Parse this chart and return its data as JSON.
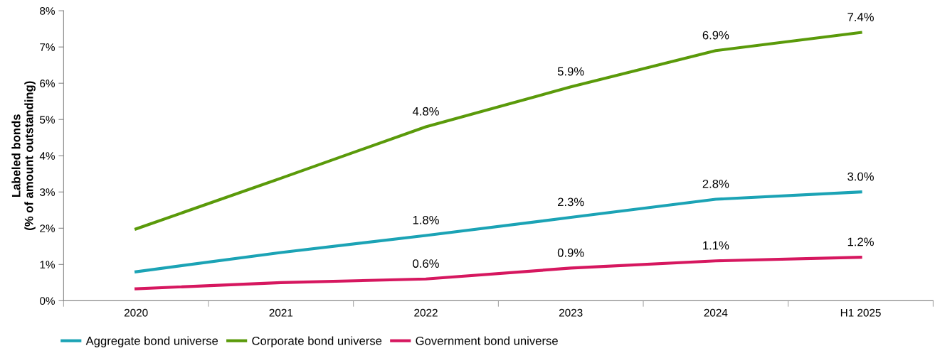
{
  "chart_data": {
    "type": "line",
    "ylabel": "Labeled bonds\n(% of amount outstanding)",
    "categories": [
      "2020",
      "2021",
      "2022",
      "2023",
      "2024",
      "H1 2025"
    ],
    "series": [
      {
        "name": "Aggregate bond universe",
        "color": "#1ba3b5",
        "values": [
          0.8,
          1.33,
          1.8,
          2.3,
          2.8,
          3.0
        ],
        "value_labels": [
          null,
          null,
          "1.8%",
          "2.3%",
          "2.8%",
          "3.0%"
        ]
      },
      {
        "name": "Corporate bond universe",
        "color": "#5a9a0a",
        "values": [
          1.98,
          3.38,
          4.8,
          5.9,
          6.9,
          7.4
        ],
        "value_labels": [
          null,
          null,
          "4.8%",
          "5.9%",
          "6.9%",
          "7.4%"
        ]
      },
      {
        "name": "Government bond universe",
        "color": "#d6175f",
        "values": [
          0.33,
          0.5,
          0.6,
          0.9,
          1.1,
          1.2
        ],
        "value_labels": [
          null,
          null,
          "0.6%",
          "0.9%",
          "1.1%",
          "1.2%"
        ]
      }
    ],
    "ylim": [
      0,
      8
    ],
    "yticks": [
      {
        "value": 0,
        "label": "0%"
      },
      {
        "value": 1,
        "label": "1%"
      },
      {
        "value": 2,
        "label": "2%"
      },
      {
        "value": 3,
        "label": "3%"
      },
      {
        "value": 4,
        "label": "4%"
      },
      {
        "value": 5,
        "label": "5%"
      },
      {
        "value": 6,
        "label": "6%"
      },
      {
        "value": 7,
        "label": "7%"
      },
      {
        "value": 8,
        "label": "8%"
      }
    ],
    "grid": false,
    "legend": "bottom left",
    "marker": "none",
    "line_style": "solid"
  }
}
